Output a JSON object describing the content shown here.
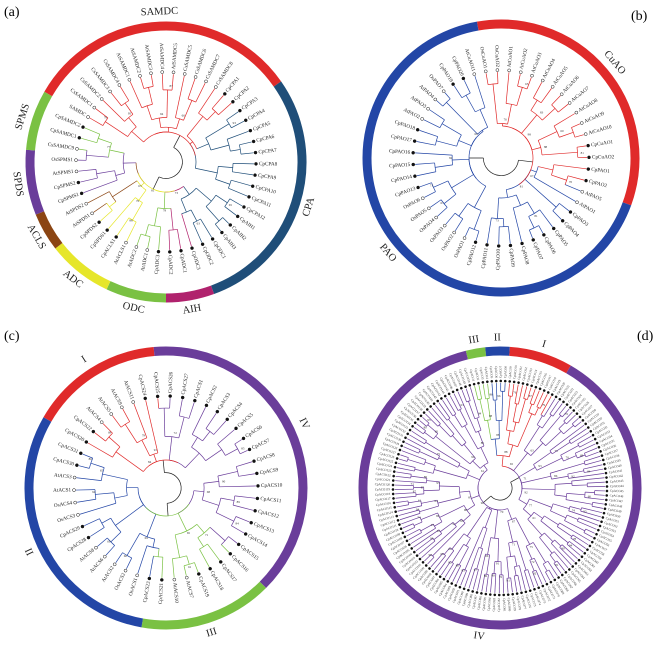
{
  "panels": [
    {
      "id": "a",
      "label": "(a)",
      "groups": [
        {
          "name": "SAMDC",
          "color": "#e02a2a",
          "from": -150,
          "to": -35
        },
        {
          "name": "CPA",
          "color": "#1f4e79",
          "from": -35,
          "to": 70
        },
        {
          "name": "AIH",
          "color": "#b0226d",
          "from": 70,
          "to": 90
        },
        {
          "name": "ODC",
          "color": "#7ac143",
          "from": 90,
          "to": 115
        },
        {
          "name": "ADC",
          "color": "#e6e62a",
          "from": 115,
          "to": 142
        },
        {
          "name": "ACLS",
          "color": "#8b4513",
          "from": 142,
          "to": 158
        },
        {
          "name": "SPDS",
          "color": "#6a3d9a",
          "from": 158,
          "to": 185
        },
        {
          "name": "SPMS",
          "color": "#7ac143",
          "from": 185,
          "to": 210
        }
      ],
      "leaves": [
        "SAMDC",
        "CsSAMDC1",
        "CsSAMDC2",
        "CsSAMDC3",
        "CsSAMDC4",
        "AtSAMDC1",
        "AtSAMDC2",
        "AtSAMDC3",
        "AtSAMDC4",
        "AtSAMDC5",
        "CsSAMDC5",
        "CsSAMDC6",
        "CsSAMDC7",
        "CsSAMDC8",
        "CpCPA1",
        "CpCPA2",
        "CpCPA3",
        "CpCPA4",
        "CpCPA5",
        "CpCPA6",
        "CpCPA7",
        "CpCPA8",
        "CpCPA9",
        "CpCPA10",
        "CpCPA11",
        "CpCPA12",
        "CpAIH1",
        "CpAIH2",
        "CpAIH3",
        "CpODC1",
        "CpODC2",
        "CpODC3",
        "CpADC1",
        "CpADC2",
        "CpADC3",
        "AtADC1",
        "AtADC2",
        "AtACLS1",
        "CpACLS1",
        "CpSPDS1",
        "CpSPDS2",
        "AtSPDS1",
        "AtSPDS2",
        "CpSPMS1",
        "CpSPMS2",
        "AtSPMS1",
        "OsSPMS1",
        "CsSAMDC9",
        "CpSAMDC1",
        "CpSAMDC2"
      ]
    },
    {
      "id": "b",
      "label": "(b)",
      "groups": [
        {
          "name": "CuAO",
          "color": "#e02a2a",
          "from": -100,
          "to": 20
        },
        {
          "name": "PAO",
          "color": "#2346a6",
          "from": 20,
          "to": 260
        }
      ],
      "leaves": [
        "OsCuAO1",
        "OsCuAO2",
        "AtCuAO1",
        "AtCuAO2",
        "AtCuAO3",
        "AtCuAO4",
        "AtCuAO5",
        "AtCuAO6",
        "AtCuAO7",
        "AtCuAO8",
        "AtCuAO9",
        "AtCuAO10",
        "CpCuAO1",
        "CpCuAO2",
        "CpPAO1",
        "CpPAO2",
        "AtPAO5",
        "AtPAO1",
        "CpPAO3",
        "CpPAO4",
        "CpPAO5",
        "CpPAO6",
        "CpPAO7",
        "CpPAO8",
        "CpPAO9",
        "CpPAO10",
        "CpPAO11",
        "CpPAO12",
        "OsPAO1",
        "OsPAO2",
        "OsPAO3",
        "OsPAO4",
        "OsPAO5",
        "OsPAO6",
        "CpPAO13",
        "CpPAO14",
        "CpPAO15",
        "CpPAO16",
        "CpPAO17",
        "CpPAO18",
        "AtPAO2",
        "AtPAO3",
        "AtPAO4",
        "OsPAO7",
        "CpPAO19",
        "CpPAO20",
        "AtCuAO11"
      ]
    },
    {
      "id": "c",
      "label": "(c)",
      "groups": [
        {
          "name": "I",
          "color": "#e02a2a",
          "from": -150,
          "to": -95
        },
        {
          "name": "IV",
          "color": "#6a3d9a",
          "from": -95,
          "to": 45
        },
        {
          "name": "III",
          "color": "#7ac143",
          "from": 45,
          "to": 100
        },
        {
          "name": "II",
          "color": "#2346a6",
          "from": 100,
          "to": 210
        }
      ],
      "leaves": [
        "CpACS20",
        "CpACS22",
        "AtACS4",
        "AtACS5",
        "AtACS9",
        "AtACS11",
        "CpACS24",
        "CpACS25",
        "CpACS26",
        "CpACS27",
        "CpACS1",
        "CpACS2",
        "CpACS3",
        "CpACS4",
        "CpACS5",
        "CpACS6",
        "CpACS7",
        "CpACS8",
        "CpACS9",
        "CpACS10",
        "CpACS11",
        "CpACS12",
        "CpACS13",
        "CpACS14",
        "CpACS15",
        "CpACS16",
        "CpACS17",
        "CpACS18",
        "CpACS19",
        "AtACS7",
        "AtACS10",
        "CpACS21",
        "CpACS23",
        "OsACS1",
        "OsACS2",
        "AtACS2",
        "AtACS6",
        "AtACS8",
        "CpACS28",
        "CpACS29",
        "OsACS3",
        "OsACS4",
        "AtACS1",
        "AtACS3",
        "CpACS30",
        "CpACS31"
      ]
    },
    {
      "id": "d",
      "label": "(d)",
      "groups": [
        {
          "name": "III",
          "color": "#7ac143",
          "from": -104,
          "to": -96
        },
        {
          "name": "II",
          "color": "#2346a6",
          "from": -96,
          "to": -86
        },
        {
          "name": "I",
          "color": "#e02a2a",
          "from": -86,
          "to": -60
        },
        {
          "name": "IV",
          "color": "#6a3d9a",
          "from": -60,
          "to": 256
        }
      ],
      "leaf_prefix": "CpACO"
    }
  ]
}
